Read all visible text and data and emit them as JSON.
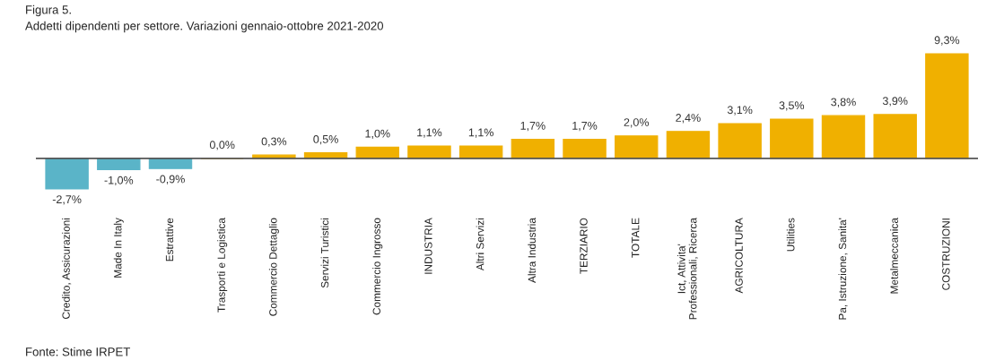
{
  "chart_data": {
    "type": "bar",
    "title": "Figura 5.",
    "subtitle": "Addetti dipendenti per settore. Variazioni gennaio-ottobre 2021-2020",
    "categories": [
      "Credito, Assicurazioni",
      "Made In Italy",
      "Estrattive",
      "Trasporti e Logistica",
      "Commercio Dettaglio",
      "Servizi Turistici",
      "Commercio Ingrosso",
      "INDUSTRIA",
      "Altri Servizi",
      "Altra Industria",
      "TERZIARIO",
      "TOTALE",
      "Ict, Attivita'\nProfessionali, Ricerca",
      "AGRICOLTURA",
      "Utilities",
      "Pa, Istruzione, Sanita'",
      "Metalmeccanica",
      "COSTRUZIONI"
    ],
    "values": [
      -2.7,
      -1.0,
      -0.9,
      0.0,
      0.3,
      0.5,
      1.0,
      1.1,
      1.1,
      1.7,
      1.7,
      2.0,
      2.4,
      3.1,
      3.5,
      3.8,
      3.9,
      9.3
    ],
    "value_labels": [
      "-2,7%",
      "-1,0%",
      "-0,9%",
      "0,0%",
      "0,3%",
      "0,5%",
      "1,0%",
      "1,1%",
      "1,1%",
      "1,7%",
      "1,7%",
      "2,0%",
      "2,4%",
      "3,1%",
      "3,5%",
      "3,8%",
      "3,9%",
      "9,3%"
    ],
    "colors": [
      "#5ab4c8",
      "#5ab4c8",
      "#5ab4c8",
      "#f0b000",
      "#f0b000",
      "#f0b000",
      "#f0b000",
      "#f0b000",
      "#f0b000",
      "#f0b000",
      "#f0b000",
      "#f0b000",
      "#f0b000",
      "#f0b000",
      "#f0b000",
      "#f0b000",
      "#f0b000",
      "#f0b000"
    ],
    "annotations": [
      "Fonte: Stime IRPET"
    ],
    "grid": false,
    "legend": false
  }
}
